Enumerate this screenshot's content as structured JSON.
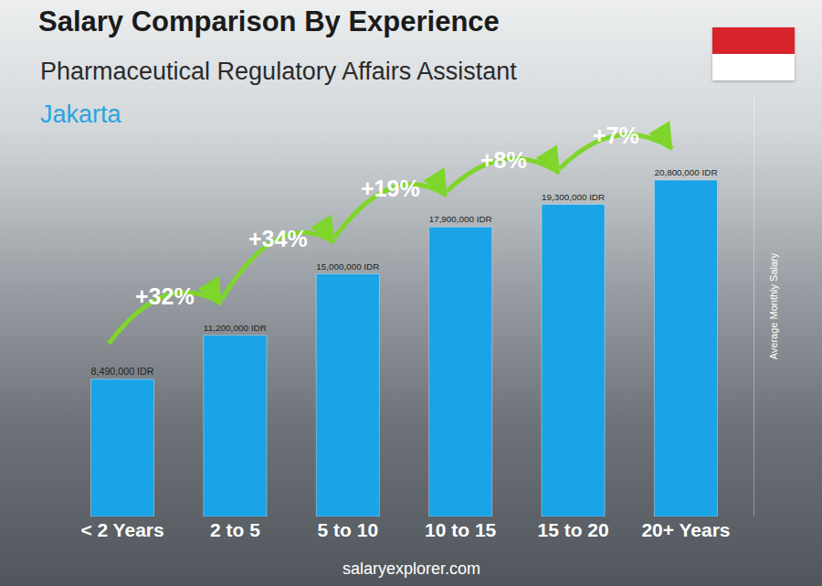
{
  "chart_data": {
    "type": "bar",
    "title": "Salary Comparison By Experience",
    "subtitle": "Pharmaceutical Regulatory Affairs Assistant",
    "location": "Jakarta",
    "y_label": "Average Monthly Salary",
    "source": "salaryexplorer.com",
    "categories": [
      "< 2 Years",
      "2 to 5",
      "5 to 10",
      "10 to 15",
      "15 to 20",
      "20+ Years"
    ],
    "values": [
      8490000,
      11200000,
      15000000,
      17900000,
      19300000,
      20800000
    ],
    "value_labels": [
      "8,490,000 IDR",
      "11,200,000 IDR",
      "15,000,000 IDR",
      "17,900,000 IDR",
      "19,300,000 IDR",
      "20,800,000 IDR"
    ],
    "change_labels": [
      "+32%",
      "+34%",
      "+19%",
      "+8%",
      "+7%"
    ],
    "color": "#1aa3e6",
    "ylim": [
      0,
      26000000
    ],
    "yticks": [],
    "grid": false,
    "data_labels": true,
    "tick_labels": "x"
  }
}
